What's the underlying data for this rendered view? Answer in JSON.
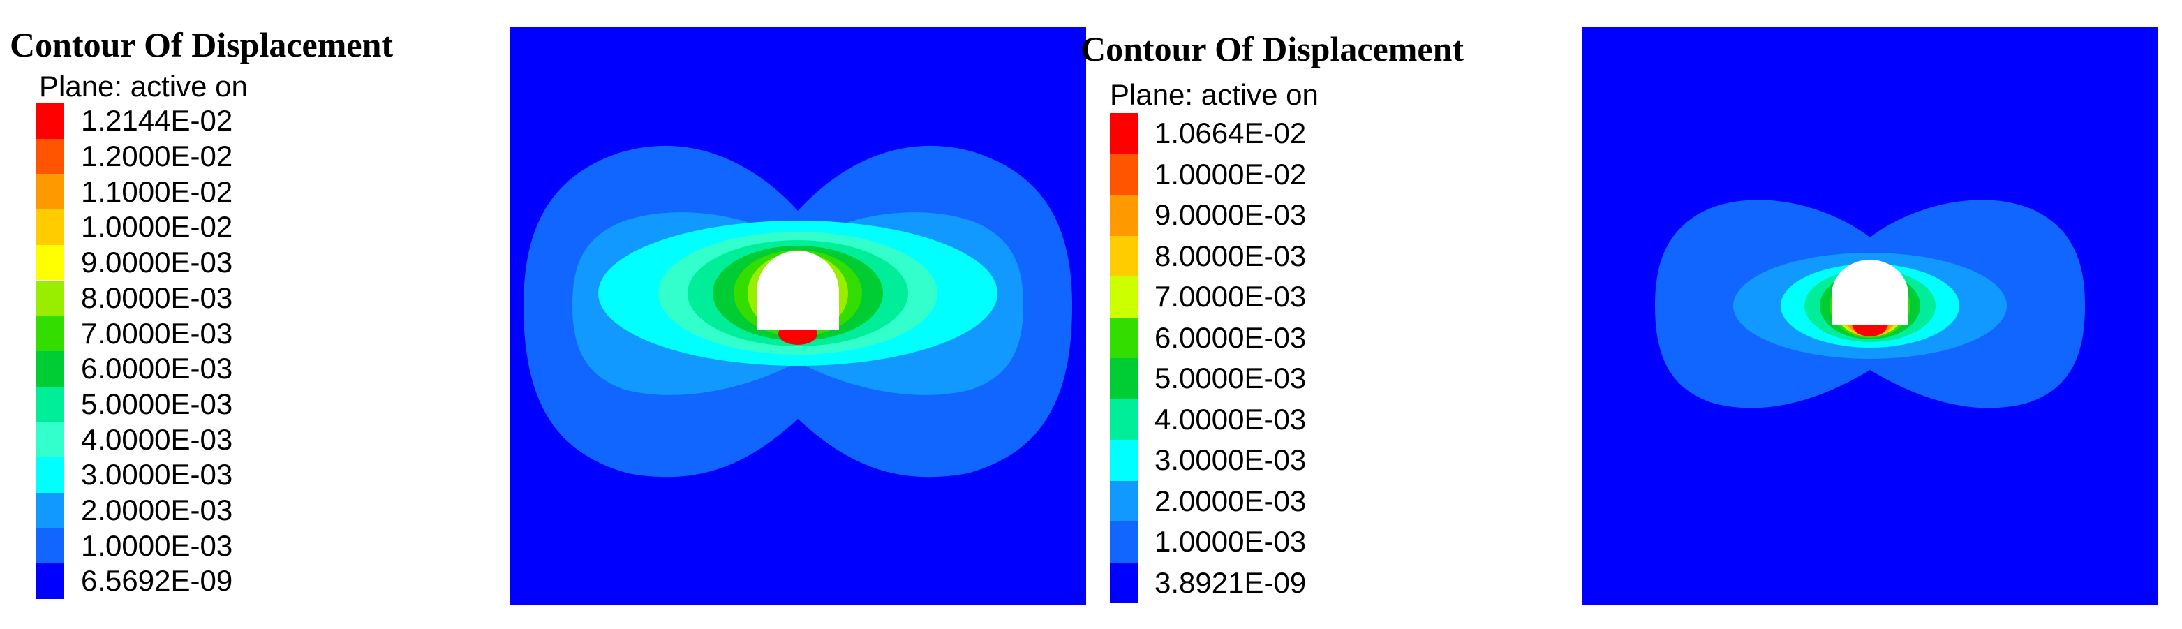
{
  "panels": [
    {
      "title": "Contour Of Displacement",
      "subtitle": "Plane: active on",
      "legend": [
        {
          "label": "1.2144E-02",
          "color": "#fe0000"
        },
        {
          "label": "1.2000E-02",
          "color": "#ff5500"
        },
        {
          "label": "1.1000E-02",
          "color": "#ff9900"
        },
        {
          "label": "1.0000E-02",
          "color": "#ffcc00"
        },
        {
          "label": "9.0000E-03",
          "color": "#ffff00"
        },
        {
          "label": "8.0000E-03",
          "color": "#99ee00"
        },
        {
          "label": "7.0000E-03",
          "color": "#33dd00"
        },
        {
          "label": "6.0000E-03",
          "color": "#00cc33"
        },
        {
          "label": "5.0000E-03",
          "color": "#00ee99"
        },
        {
          "label": "4.0000E-03",
          "color": "#33ffcc"
        },
        {
          "label": "3.0000E-03",
          "color": "#00ffff"
        },
        {
          "label": "2.0000E-03",
          "color": "#1199ff"
        },
        {
          "label": "1.0000E-03",
          "color": "#1166ff"
        },
        {
          "label": "6.5692E-09",
          "color": "#0000ff"
        }
      ]
    },
    {
      "title": "Contour Of Displacement",
      "subtitle": "Plane: active on",
      "legend": [
        {
          "label": "1.0664E-02",
          "color": "#fe0000"
        },
        {
          "label": "1.0000E-02",
          "color": "#ff5500"
        },
        {
          "label": "9.0000E-03",
          "color": "#ff9900"
        },
        {
          "label": "8.0000E-03",
          "color": "#ffcc00"
        },
        {
          "label": "7.0000E-03",
          "color": "#ccff00"
        },
        {
          "label": "6.0000E-03",
          "color": "#33dd00"
        },
        {
          "label": "5.0000E-03",
          "color": "#00cc33"
        },
        {
          "label": "4.0000E-03",
          "color": "#00ee99"
        },
        {
          "label": "3.0000E-03",
          "color": "#00ffff"
        },
        {
          "label": "2.0000E-03",
          "color": "#1199ff"
        },
        {
          "label": "1.0000E-03",
          "color": "#1166ff"
        },
        {
          "label": "3.8921E-09",
          "color": "#0000ff"
        }
      ]
    }
  ]
}
